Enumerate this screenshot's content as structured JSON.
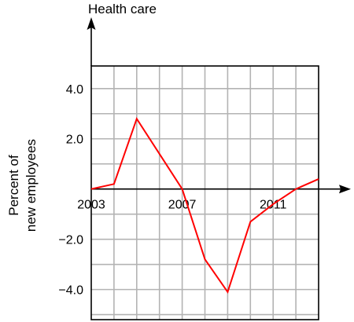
{
  "chart_data": {
    "type": "line",
    "title": "Health care",
    "ylabel_lines": [
      "Percent of",
      "new employees"
    ],
    "x_ticks": [
      {
        "value": 2003,
        "label": "2003"
      },
      {
        "value": 2007,
        "label": "2007"
      },
      {
        "value": 2011,
        "label": "2011"
      }
    ],
    "y_ticks": [
      {
        "value": 4.0,
        "label": "4.0"
      },
      {
        "value": 2.0,
        "label": "2.0"
      },
      {
        "value": -2.0,
        "label": "−2.0"
      },
      {
        "value": -4.0,
        "label": "−4.0"
      }
    ],
    "xlim": [
      2003,
      2013
    ],
    "ylim": [
      -5.2,
      4.9
    ],
    "grid": true,
    "series": [
      {
        "color": "#ff0000",
        "x": [
          2003,
          2004,
          2005,
          2006,
          2007,
          2008,
          2009,
          2010,
          2011,
          2012,
          2013
        ],
        "y": [
          0.0,
          0.2,
          2.8,
          1.4,
          0.0,
          -2.8,
          -4.1,
          -1.3,
          -0.6,
          0.0,
          0.4
        ]
      }
    ]
  }
}
